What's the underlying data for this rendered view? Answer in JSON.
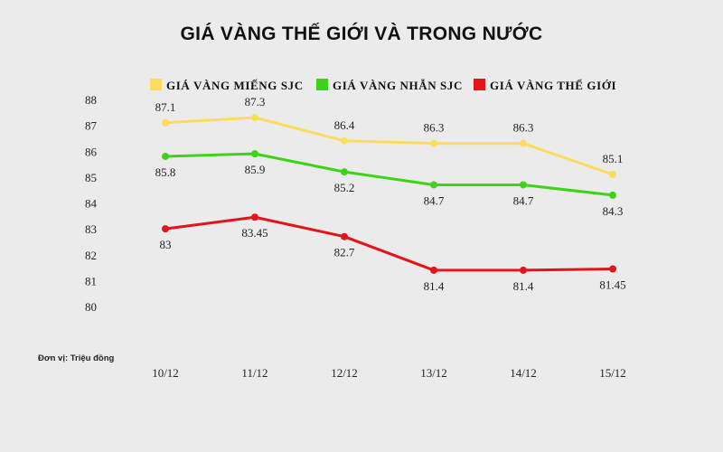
{
  "chart_data": {
    "type": "line",
    "title": "GIÁ VÀNG THẾ GIỚI VÀ TRONG NƯỚC",
    "unit_note": "Đơn vị: Triệu đồng",
    "categories": [
      "10/12",
      "11/12",
      "12/12",
      "13/12",
      "14/12",
      "15/12"
    ],
    "yticks": [
      80,
      81,
      82,
      83,
      84,
      85,
      86,
      87,
      88
    ],
    "ylim": [
      80,
      88
    ],
    "grid": false,
    "legend_position": "top",
    "series": [
      {
        "name": "GIÁ VÀNG MIẾNG SJC",
        "color": "#fcdc5e",
        "values": [
          87.1,
          87.3,
          86.4,
          86.3,
          86.3,
          85.1
        ],
        "labels": [
          "87.1",
          "87.3",
          "86.4",
          "86.3",
          "86.3",
          "85.1"
        ],
        "label_pos": "above"
      },
      {
        "name": "GIÁ VÀNG NHẪN SJC",
        "color": "#3dd317",
        "values": [
          85.8,
          85.9,
          85.2,
          84.7,
          84.7,
          84.3
        ],
        "labels": [
          "85.8",
          "85.9",
          "85.2",
          "84.7",
          "84.7",
          "84.3"
        ],
        "label_pos": "below"
      },
      {
        "name": "GIÁ VÀNG THẾ GIỚI",
        "color": "#e3141c",
        "values": [
          83,
          83.45,
          82.7,
          81.4,
          81.4,
          81.45
        ],
        "labels": [
          "83",
          "83.45",
          "82.7",
          "81.4",
          "81.4",
          "81.45"
        ],
        "label_pos": "below"
      }
    ]
  }
}
